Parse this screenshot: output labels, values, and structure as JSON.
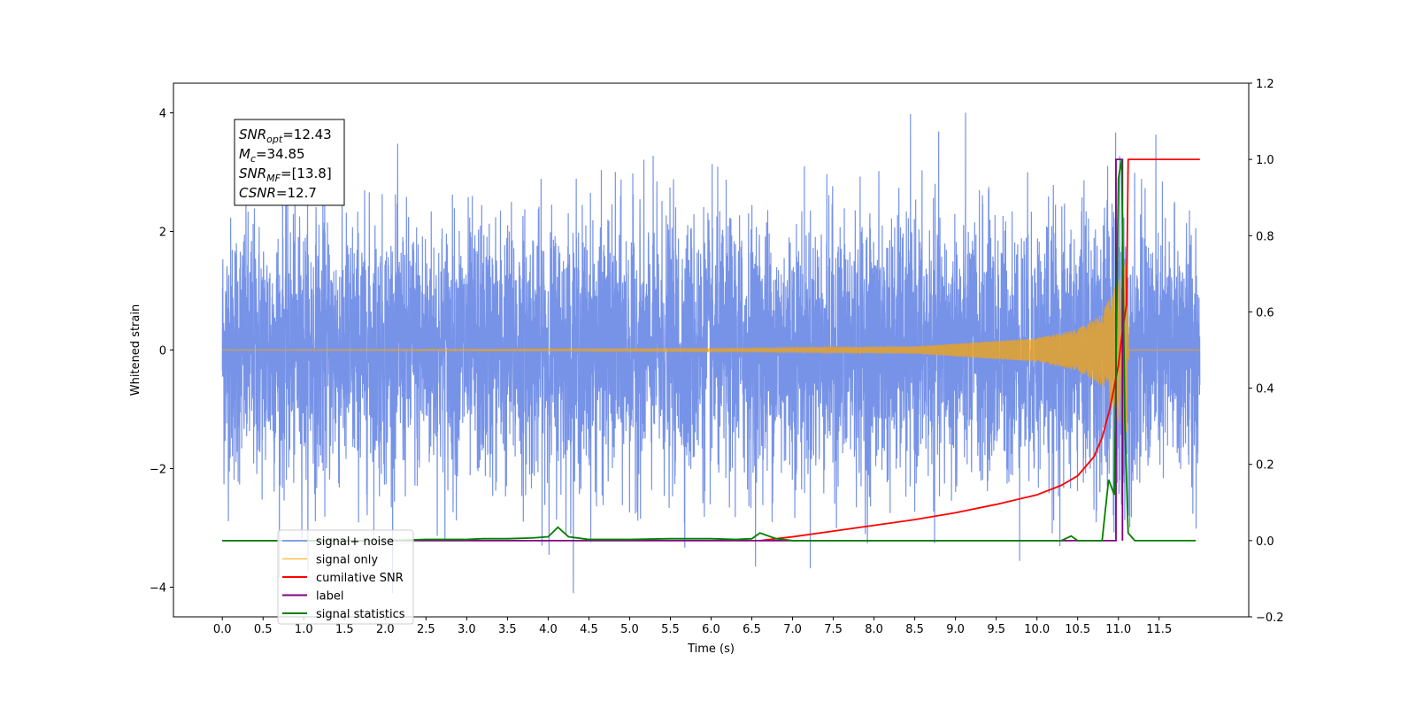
{
  "chart_data": {
    "type": "line",
    "xlabel": "Time (s)",
    "ylabel": "Whitened strain",
    "xlim": [
      -0.6,
      12.6
    ],
    "ylim": [
      -4.5,
      4.5
    ],
    "y2lim": [
      -0.2,
      1.2
    ],
    "x_ticks": [
      "0.0",
      "0.5",
      "1.0",
      "1.5",
      "2.0",
      "2.5",
      "3.0",
      "3.5",
      "4.0",
      "4.5",
      "5.0",
      "5.5",
      "6.0",
      "6.5",
      "7.0",
      "7.5",
      "8.0",
      "8.5",
      "9.0",
      "9.5",
      "10.0",
      "10.5",
      "11.0",
      "11.5"
    ],
    "y_ticks": [
      "−4",
      "−2",
      "0",
      "2",
      "4"
    ],
    "y2_ticks": [
      "−0.2",
      "0.0",
      "0.2",
      "0.4",
      "0.6",
      "0.8",
      "1.0",
      "1.2"
    ],
    "grid": false,
    "legend_position": "lower-left",
    "annotations": [
      {
        "prefix": "SNR",
        "sub": "opt",
        "value": "=12.43"
      },
      {
        "prefix": "M",
        "sub": "c",
        "value": "=34.85"
      },
      {
        "prefix": "SNR",
        "sub": "MF",
        "value": "=[13.8]"
      },
      {
        "prefix": "CSNR",
        "sub": "",
        "value": "=12.7"
      }
    ],
    "series": [
      {
        "name": "signal+ noise",
        "axis": "left",
        "color": "#6b8ae6",
        "x_range": [
          0.0,
          12.0
        ],
        "noise_rms": 1.1,
        "noise_max_abs": 4.1,
        "chirp_envelope_peak": 1.5,
        "chirp_peak_time": 11.1
      },
      {
        "name": "signal only",
        "axis": "left",
        "color": "#ffa500",
        "x_range": [
          0.0,
          12.0
        ],
        "chirp_amplitude": [
          [
            0.0,
            0.0
          ],
          [
            6.5,
            0.03
          ],
          [
            8.5,
            0.06
          ],
          [
            10.0,
            0.2
          ],
          [
            10.5,
            0.35
          ],
          [
            10.8,
            0.6
          ],
          [
            11.0,
            1.2
          ],
          [
            11.1,
            1.5
          ],
          [
            11.13,
            0.0
          ],
          [
            12.0,
            0.0
          ]
        ]
      },
      {
        "name": "cumilative SNR",
        "axis": "right",
        "color": "#ff0000",
        "x": [
          6.6,
          7.0,
          7.5,
          8.0,
          8.5,
          9.0,
          9.5,
          10.0,
          10.3,
          10.5,
          10.7,
          10.8,
          10.9,
          11.0,
          11.05,
          11.1,
          11.12,
          11.15,
          11.5,
          12.0
        ],
        "values": [
          0.0,
          0.01,
          0.025,
          0.04,
          0.055,
          0.073,
          0.095,
          0.12,
          0.145,
          0.17,
          0.22,
          0.27,
          0.35,
          0.46,
          0.55,
          0.62,
          1.0,
          1.0,
          1.0,
          1.0
        ]
      },
      {
        "name": "label",
        "axis": "right",
        "color": "#800080",
        "x": [
          0.0,
          10.97,
          10.97,
          11.05,
          11.05
        ],
        "values": [
          0.0,
          0.0,
          1.0,
          1.0,
          0.0
        ]
      },
      {
        "name": "signal statistics",
        "axis": "right",
        "color": "#008000",
        "x": [
          0.0,
          1.0,
          2.0,
          2.5,
          3.0,
          3.2,
          3.5,
          3.8,
          4.0,
          4.12,
          4.25,
          4.5,
          5.0,
          5.5,
          6.0,
          6.3,
          6.5,
          6.6,
          6.8,
          7.0,
          8.0,
          9.0,
          10.0,
          10.3,
          10.42,
          10.5,
          10.8,
          10.88,
          10.95,
          11.0,
          11.04,
          11.08,
          11.12,
          11.2,
          11.5,
          11.95
        ],
        "values": [
          0.0,
          0.0,
          0.0,
          0.003,
          0.003,
          0.005,
          0.005,
          0.007,
          0.01,
          0.035,
          0.01,
          0.003,
          0.003,
          0.005,
          0.005,
          0.003,
          0.005,
          0.02,
          0.005,
          0.0,
          0.0,
          0.0,
          0.0,
          0.0,
          0.012,
          0.0,
          0.0,
          0.16,
          0.12,
          0.95,
          1.0,
          0.3,
          0.02,
          0.0,
          0.0,
          0.0
        ]
      }
    ]
  }
}
